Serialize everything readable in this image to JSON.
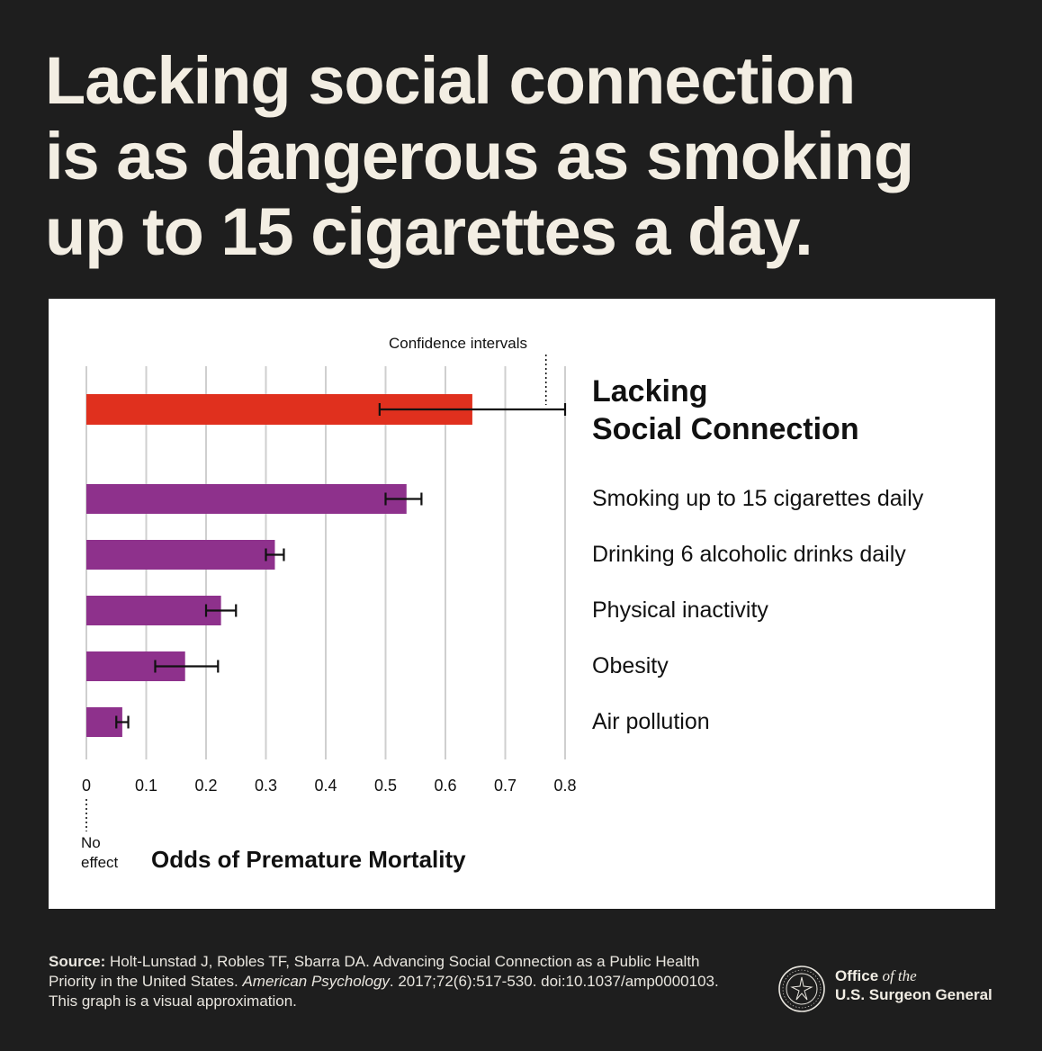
{
  "headline": {
    "line1": "Lacking social connection",
    "line2": "is as dangerous as smoking",
    "line3": "up to 15 cigarettes a day."
  },
  "chart_data": {
    "type": "bar",
    "orientation": "horizontal",
    "xlabel": "Odds of Premature Mortality",
    "xlim": [
      0,
      0.8
    ],
    "xticks": [
      "0",
      "0.1",
      "0.2",
      "0.3",
      "0.4",
      "0.5",
      "0.6",
      "0.7",
      "0.8"
    ],
    "grid": true,
    "categories": [
      "Lacking Social Connection",
      "Smoking up to 15 cigarettes daily",
      "Drinking 6 alcoholic drinks daily",
      "Physical inactivity",
      "Obesity",
      "Air pollution"
    ],
    "values": [
      0.645,
      0.535,
      0.315,
      0.225,
      0.165,
      0.06
    ],
    "ci_low": [
      0.49,
      0.5,
      0.3,
      0.2,
      0.115,
      0.05
    ],
    "ci_high": [
      0.8,
      0.56,
      0.33,
      0.25,
      0.22,
      0.07
    ],
    "colors": [
      "#e0301e",
      "#8e318c",
      "#8e318c",
      "#8e318c",
      "#8e318c",
      "#8e318c"
    ],
    "annotations": {
      "confidence_intervals": "Confidence intervals",
      "no_effect_line1": "No",
      "no_effect_line2": "effect"
    }
  },
  "labels": {
    "primary_line1": "Lacking",
    "primary_line2": "Social Connection",
    "smoking": "Smoking up to 15 cigarettes daily",
    "drinking": "Drinking 6 alcoholic drinks daily",
    "inactivity": "Physical inactivity",
    "obesity": "Obesity",
    "pollution": "Air pollution"
  },
  "footer": {
    "source_label": "Source:",
    "source_text1": " Holt-Lunstad J, Robles TF, Sbarra DA. Advancing Social Connection as a Public Health Priority in the United States. ",
    "source_journal": "American Psychology",
    "source_text2": ". 2017;72(6):517-530. doi:10.1037/amp0000103. This graph is a visual approximation.",
    "office_prefix": "Office",
    "office_of": " of the",
    "office_name": "U.S. Surgeon General"
  }
}
